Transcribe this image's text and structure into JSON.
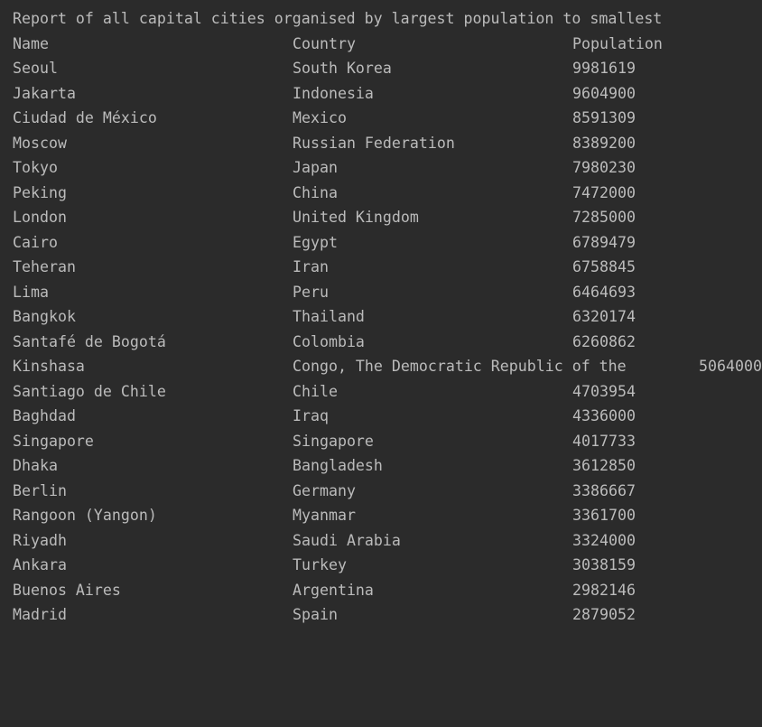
{
  "report": {
    "title": "Report of all capital cities organised by largest population to smallest",
    "headers": {
      "name": "Name",
      "country": "Country",
      "population": "Population"
    },
    "rows": [
      {
        "name": "Seoul",
        "country": "South Korea",
        "population": "9981619"
      },
      {
        "name": "Jakarta",
        "country": "Indonesia",
        "population": "9604900"
      },
      {
        "name": "Ciudad de México",
        "country": "Mexico",
        "population": "8591309"
      },
      {
        "name": "Moscow",
        "country": "Russian Federation",
        "population": "8389200"
      },
      {
        "name": "Tokyo",
        "country": "Japan",
        "population": "7980230"
      },
      {
        "name": "Peking",
        "country": "China",
        "population": "7472000"
      },
      {
        "name": "London",
        "country": "United Kingdom",
        "population": "7285000"
      },
      {
        "name": "Cairo",
        "country": "Egypt",
        "population": "6789479"
      },
      {
        "name": "Teheran",
        "country": "Iran",
        "population": "6758845"
      },
      {
        "name": "Lima",
        "country": "Peru",
        "population": "6464693"
      },
      {
        "name": "Bangkok",
        "country": "Thailand",
        "population": "6320174"
      },
      {
        "name": "Santafé de Bogotá",
        "country": "Colombia",
        "population": "6260862"
      },
      {
        "name": "Kinshasa",
        "country": "Congo, The Democratic Republic of the",
        "population": "5064000"
      },
      {
        "name": "Santiago de Chile",
        "country": "Chile",
        "population": "4703954"
      },
      {
        "name": "Baghdad",
        "country": "Iraq",
        "population": "4336000"
      },
      {
        "name": "Singapore",
        "country": "Singapore",
        "population": "4017733"
      },
      {
        "name": "Dhaka",
        "country": "Bangladesh",
        "population": "3612850"
      },
      {
        "name": "Berlin",
        "country": "Germany",
        "population": "3386667"
      },
      {
        "name": "Rangoon (Yangon)",
        "country": "Myanmar",
        "population": "3361700"
      },
      {
        "name": "Riyadh",
        "country": "Saudi Arabia",
        "population": "3324000"
      },
      {
        "name": "Ankara",
        "country": "Turkey",
        "population": "3038159"
      },
      {
        "name": "Buenos Aires",
        "country": "Argentina",
        "population": "2982146"
      },
      {
        "name": "Madrid",
        "country": "Spain",
        "population": "2879052"
      }
    ]
  },
  "colors": {
    "background": "#2b2b2b",
    "text": "#bbbbbb"
  }
}
